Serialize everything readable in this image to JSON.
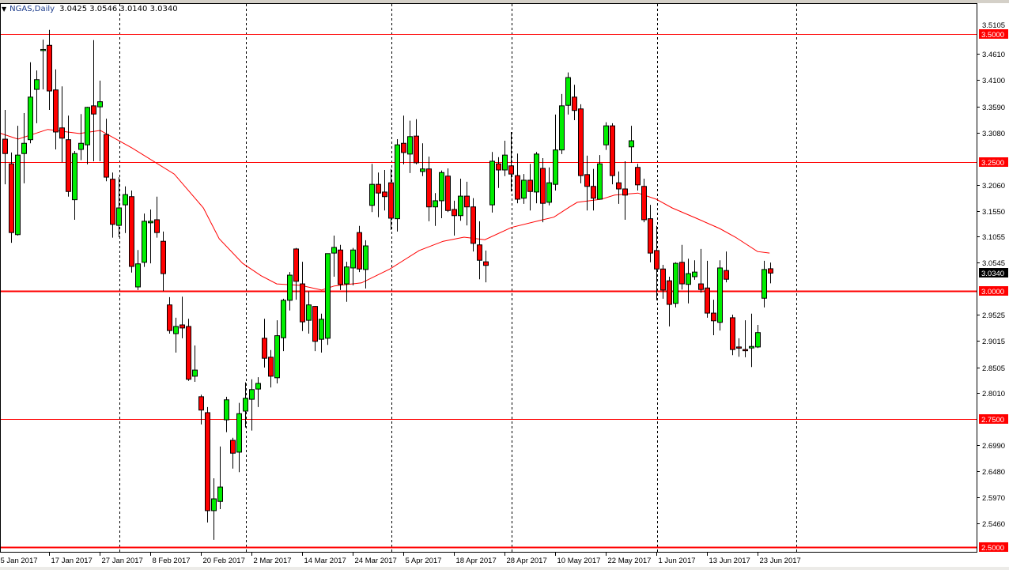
{
  "header": {
    "symbol": "NGAS,Daily",
    "ohlc": "3.0425 3.0546 3.0140 3.0340",
    "collapse_icon": "triangle-down-icon"
  },
  "chart_data": {
    "type": "candlestick",
    "title": "NGAS,Daily",
    "ylim": [
      2.495,
      3.5105
    ],
    "colors": {
      "bull": "#00ee00",
      "bear": "#ff0000",
      "ma": "#ff0000",
      "level": "#ff0000",
      "grid": "#000000"
    },
    "y_ticks": [
      "3.4610",
      "3.4100",
      "3.3590",
      "3.3080",
      "3.2060",
      "3.1550",
      "3.1055",
      "3.0545",
      "2.9525",
      "2.9015",
      "2.8505",
      "2.8010",
      "2.6990",
      "2.6480",
      "2.5970",
      "2.5460"
    ],
    "y_tick_values": [
      3.461,
      3.41,
      3.359,
      3.308,
      3.206,
      3.155,
      3.1055,
      3.0545,
      2.9525,
      2.9015,
      2.8505,
      2.801,
      2.699,
      2.648,
      2.597,
      2.546
    ],
    "hidden_top_tick": "3.5105",
    "levels": [
      {
        "value": 3.5,
        "label": "3.5000",
        "weight": 1
      },
      {
        "value": 3.25,
        "label": "3.2500",
        "weight": 1
      },
      {
        "value": 3.0,
        "label": "3.0000",
        "weight": 2
      },
      {
        "value": 2.75,
        "label": "2.7500",
        "weight": 1
      },
      {
        "value": 2.5,
        "label": "2.5000",
        "weight": 2
      }
    ],
    "current_price": {
      "value": 3.034,
      "label": "3.0340"
    },
    "x_labels": [
      {
        "label": "5 Jan 2017",
        "bar": -1
      },
      {
        "label": "17 Jan 2017",
        "bar": 7
      },
      {
        "label": "27 Jan 2017",
        "bar": 15
      },
      {
        "label": "8 Feb 2017",
        "bar": 23
      },
      {
        "label": "20 Feb 2017",
        "bar": 31
      },
      {
        "label": "2 Mar 2017",
        "bar": 39
      },
      {
        "label": "14 Mar 2017",
        "bar": 47
      },
      {
        "label": "24 Mar 2017",
        "bar": 55
      },
      {
        "label": "5 Apr 2017",
        "bar": 63
      },
      {
        "label": "18 Apr 2017",
        "bar": 71
      },
      {
        "label": "28 Apr 2017",
        "bar": 79
      },
      {
        "label": "10 May 2017",
        "bar": 87
      },
      {
        "label": "22 May 2017",
        "bar": 95
      },
      {
        "label": "1 Jun 2017",
        "bar": 103
      },
      {
        "label": "13 Jun 2017",
        "bar": 111
      },
      {
        "label": "23 Jun 2017",
        "bar": 119
      }
    ],
    "period_separators": [
      18,
      38,
      61,
      80,
      103,
      125
    ],
    "candles": [
      [
        3.295,
        3.352,
        3.207,
        3.267
      ],
      [
        3.247,
        3.269,
        3.093,
        3.113
      ],
      [
        3.109,
        3.321,
        3.107,
        3.264
      ],
      [
        3.267,
        3.346,
        3.209,
        3.287
      ],
      [
        3.294,
        3.445,
        3.287,
        3.377
      ],
      [
        3.392,
        3.429,
        3.326,
        3.411
      ],
      [
        3.469,
        3.489,
        3.392,
        3.47
      ],
      [
        3.478,
        3.508,
        3.352,
        3.389
      ],
      [
        3.391,
        3.431,
        3.275,
        3.309
      ],
      [
        3.317,
        3.398,
        3.25,
        3.297
      ],
      [
        3.294,
        3.341,
        3.183,
        3.193
      ],
      [
        3.177,
        3.272,
        3.138,
        3.267
      ],
      [
        3.275,
        3.344,
        3.254,
        3.287
      ],
      [
        3.284,
        3.358,
        3.246,
        3.357
      ],
      [
        3.36,
        3.488,
        3.252,
        3.344
      ],
      [
        3.358,
        3.409,
        3.252,
        3.368
      ],
      [
        3.304,
        3.335,
        3.213,
        3.221
      ],
      [
        3.217,
        3.23,
        3.103,
        3.129
      ],
      [
        3.127,
        3.221,
        3.104,
        3.161
      ],
      [
        3.167,
        3.203,
        3.112,
        3.187
      ],
      [
        3.183,
        3.195,
        3.035,
        3.047
      ],
      [
        3.007,
        3.079,
        3.001,
        3.052
      ],
      [
        3.055,
        3.15,
        3.046,
        3.135
      ],
      [
        3.132,
        3.158,
        3.053,
        3.135
      ],
      [
        3.138,
        3.183,
        3.103,
        3.113
      ],
      [
        3.096,
        3.115,
        2.999,
        3.033
      ],
      [
        2.972,
        2.987,
        2.916,
        2.922
      ],
      [
        2.916,
        2.947,
        2.879,
        2.93
      ],
      [
        2.933,
        2.988,
        2.907,
        2.927
      ],
      [
        2.93,
        2.945,
        2.824,
        2.827
      ],
      [
        2.833,
        2.893,
        2.822,
        2.845
      ],
      [
        2.793,
        2.797,
        2.739,
        2.767
      ],
      [
        2.762,
        2.773,
        2.548,
        2.571
      ],
      [
        2.571,
        2.634,
        2.514,
        2.594
      ],
      [
        2.589,
        2.696,
        2.574,
        2.617
      ],
      [
        2.748,
        2.793,
        2.724,
        2.787
      ],
      [
        2.708,
        2.713,
        2.653,
        2.683
      ],
      [
        2.685,
        2.781,
        2.646,
        2.76
      ],
      [
        2.765,
        2.821,
        2.733,
        2.79
      ],
      [
        2.788,
        2.827,
        2.727,
        2.807
      ],
      [
        2.808,
        2.831,
        2.773,
        2.819
      ],
      [
        2.907,
        2.945,
        2.85,
        2.868
      ],
      [
        2.87,
        2.884,
        2.811,
        2.833
      ],
      [
        2.83,
        2.942,
        2.819,
        2.912
      ],
      [
        2.908,
        2.984,
        2.882,
        2.981
      ],
      [
        2.981,
        3.036,
        2.961,
        3.03
      ],
      [
        3.081,
        3.083,
        2.982,
        3.018
      ],
      [
        3.013,
        3.056,
        2.921,
        2.939
      ],
      [
        2.942,
        2.998,
        2.916,
        2.972
      ],
      [
        2.969,
        2.97,
        2.882,
        2.901
      ],
      [
        2.905,
        2.955,
        2.879,
        2.944
      ],
      [
        2.907,
        3.072,
        2.894,
        3.072
      ],
      [
        3.073,
        3.107,
        3.027,
        3.084
      ],
      [
        3.079,
        3.089,
        3.001,
        3.012
      ],
      [
        3.013,
        3.056,
        2.978,
        3.046
      ],
      [
        3.044,
        3.083,
        3.01,
        3.079
      ],
      [
        3.113,
        3.126,
        3.036,
        3.042
      ],
      [
        3.041,
        3.098,
        3.004,
        3.087
      ],
      [
        3.166,
        3.247,
        3.153,
        3.207
      ],
      [
        3.207,
        3.23,
        3.143,
        3.19
      ],
      [
        3.192,
        3.235,
        3.156,
        3.183
      ],
      [
        3.21,
        3.237,
        3.118,
        3.141
      ],
      [
        3.14,
        3.295,
        3.115,
        3.284
      ],
      [
        3.287,
        3.341,
        3.246,
        3.269
      ],
      [
        3.266,
        3.331,
        3.229,
        3.3
      ],
      [
        3.301,
        3.334,
        3.246,
        3.249
      ],
      [
        3.232,
        3.287,
        3.223,
        3.237
      ],
      [
        3.237,
        3.261,
        3.135,
        3.163
      ],
      [
        3.163,
        3.19,
        3.126,
        3.175
      ],
      [
        3.175,
        3.234,
        3.141,
        3.23
      ],
      [
        3.223,
        3.238,
        3.153,
        3.156
      ],
      [
        3.158,
        3.175,
        3.107,
        3.146
      ],
      [
        3.146,
        3.218,
        3.136,
        3.184
      ],
      [
        3.184,
        3.212,
        3.127,
        3.163
      ],
      [
        3.163,
        3.18,
        3.076,
        3.092
      ],
      [
        3.089,
        3.135,
        3.022,
        3.059
      ],
      [
        3.056,
        3.078,
        3.016,
        3.049
      ],
      [
        3.167,
        3.27,
        3.152,
        3.252
      ],
      [
        3.247,
        3.26,
        3.2,
        3.235
      ],
      [
        3.235,
        3.292,
        3.223,
        3.264
      ],
      [
        3.243,
        3.309,
        3.193,
        3.227
      ],
      [
        3.224,
        3.267,
        3.17,
        3.178
      ],
      [
        3.18,
        3.227,
        3.169,
        3.215
      ],
      [
        3.215,
        3.247,
        3.156,
        3.193
      ],
      [
        3.192,
        3.27,
        3.17,
        3.266
      ],
      [
        3.238,
        3.258,
        3.133,
        3.17
      ],
      [
        3.172,
        3.24,
        3.166,
        3.21
      ],
      [
        3.207,
        3.343,
        3.195,
        3.274
      ],
      [
        3.274,
        3.383,
        3.266,
        3.36
      ],
      [
        3.361,
        3.425,
        3.343,
        3.415
      ],
      [
        3.377,
        3.401,
        3.332,
        3.351
      ],
      [
        3.354,
        3.363,
        3.209,
        3.224
      ],
      [
        3.226,
        3.263,
        3.156,
        3.203
      ],
      [
        3.203,
        3.237,
        3.156,
        3.18
      ],
      [
        3.178,
        3.264,
        3.177,
        3.247
      ],
      [
        3.284,
        3.328,
        3.274,
        3.321
      ],
      [
        3.321,
        3.326,
        3.207,
        3.224
      ],
      [
        3.21,
        3.232,
        3.169,
        3.198
      ],
      [
        3.198,
        3.252,
        3.138,
        3.186
      ],
      [
        3.28,
        3.321,
        3.249,
        3.292
      ],
      [
        3.24,
        3.247,
        3.195,
        3.206
      ],
      [
        3.203,
        3.218,
        3.133,
        3.138
      ],
      [
        3.14,
        3.167,
        3.055,
        3.073
      ],
      [
        3.078,
        3.126,
        2.981,
        3.042
      ],
      [
        3.042,
        3.05,
        2.984,
        3.001
      ],
      [
        3.019,
        3.027,
        2.93,
        2.973
      ],
      [
        2.975,
        3.055,
        2.967,
        3.053
      ],
      [
        3.055,
        3.089,
        3.002,
        3.013
      ],
      [
        3.012,
        3.062,
        2.975,
        3.033
      ],
      [
        3.027,
        3.059,
        3.021,
        3.036
      ],
      [
        3.013,
        3.081,
        2.996,
        3.002
      ],
      [
        3.005,
        3.058,
        2.947,
        2.956
      ],
      [
        2.956,
        2.982,
        2.913,
        2.941
      ],
      [
        2.938,
        3.059,
        2.922,
        3.044
      ],
      [
        3.039,
        3.076,
        3.016,
        3.022
      ],
      [
        2.947,
        2.953,
        2.874,
        2.885
      ],
      [
        2.89,
        2.907,
        2.871,
        2.889
      ],
      [
        2.885,
        2.942,
        2.87,
        2.884
      ],
      [
        2.888,
        2.955,
        2.851,
        2.891
      ],
      [
        2.89,
        2.933,
        2.888,
        2.918
      ],
      [
        2.985,
        3.058,
        2.967,
        3.041
      ],
      [
        3.0425,
        3.0546,
        3.014,
        3.034
      ]
    ],
    "moving_average": [
      [
        -0.8,
        3.307
      ],
      [
        2.1,
        3.295
      ],
      [
        6.8,
        3.314
      ],
      [
        11.8,
        3.306
      ],
      [
        15.1,
        3.312
      ],
      [
        20.1,
        3.278
      ],
      [
        26.8,
        3.227
      ],
      [
        31.4,
        3.161
      ],
      [
        33.9,
        3.101
      ],
      [
        37.6,
        3.053
      ],
      [
        40.5,
        3.029
      ],
      [
        43,
        3.013
      ],
      [
        46.8,
        3.01
      ],
      [
        50.1,
        3.001
      ],
      [
        52.1,
        3.009
      ],
      [
        56.4,
        3.015
      ],
      [
        60.9,
        3.042
      ],
      [
        65.5,
        3.078
      ],
      [
        69.3,
        3.096
      ],
      [
        72.6,
        3.104
      ],
      [
        75.9,
        3.099
      ],
      [
        80.1,
        3.123
      ],
      [
        85.1,
        3.138
      ],
      [
        86.8,
        3.143
      ],
      [
        89.3,
        3.163
      ],
      [
        90.5,
        3.172
      ],
      [
        94.3,
        3.178
      ],
      [
        96.4,
        3.186
      ],
      [
        100.1,
        3.19
      ],
      [
        103,
        3.178
      ],
      [
        105.5,
        3.161
      ],
      [
        109.3,
        3.141
      ],
      [
        113,
        3.121
      ],
      [
        115.5,
        3.104
      ],
      [
        119,
        3.076
      ],
      [
        120.9,
        3.073
      ]
    ]
  }
}
